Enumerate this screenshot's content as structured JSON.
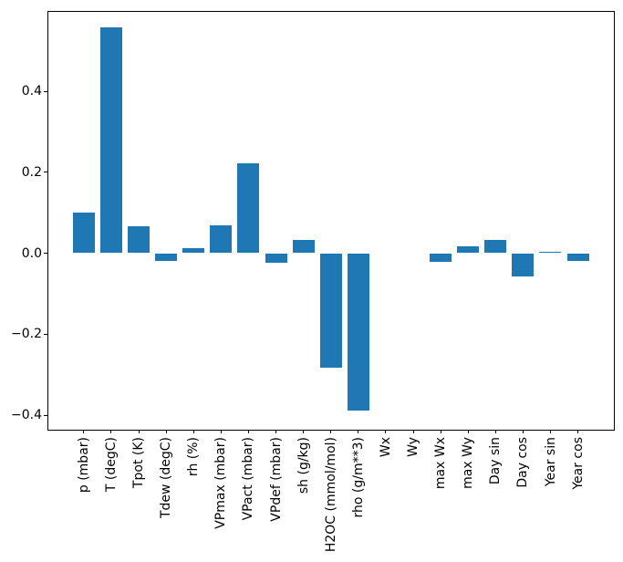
{
  "figure": {
    "background": "#ffffff",
    "title": ""
  },
  "chart_data": {
    "type": "bar",
    "title": "",
    "xlabel": "",
    "ylabel": "",
    "grid": false,
    "legend": "none",
    "bar_color": "#1f77b4",
    "axis_color": "#000000",
    "categories": [
      "p (mbar)",
      "T (degC)",
      "Tpot (K)",
      "Tdew (degC)",
      "rh (%)",
      "VPmax (mbar)",
      "VPact (mbar)",
      "VPdef (mbar)",
      "sh (g/kg)",
      "H2OC (mmol/mol)",
      "rho (g/m**3)",
      "Wx",
      "Wy",
      "max Wx",
      "max Wy",
      "Day sin",
      "Day cos",
      "Year sin",
      "Year cos"
    ],
    "values": [
      0.101,
      0.558,
      0.066,
      -0.019,
      0.012,
      0.069,
      0.221,
      -0.023,
      0.033,
      -0.282,
      -0.388,
      0.0,
      0.0,
      -0.021,
      0.016,
      0.033,
      -0.058,
      0.003,
      -0.019
    ],
    "ylim": [
      -0.436,
      0.596
    ],
    "xlim": [
      -1.29,
      19.31
    ],
    "bar_width_units": 0.8,
    "yticks": [
      {
        "value": 0.4,
        "label": "0.4"
      },
      {
        "value": 0.2,
        "label": "0.2"
      },
      {
        "value": 0.0,
        "label": "0.0"
      },
      {
        "value": -0.2,
        "label": "−0.2"
      },
      {
        "value": -0.4,
        "label": "−0.4"
      }
    ]
  }
}
